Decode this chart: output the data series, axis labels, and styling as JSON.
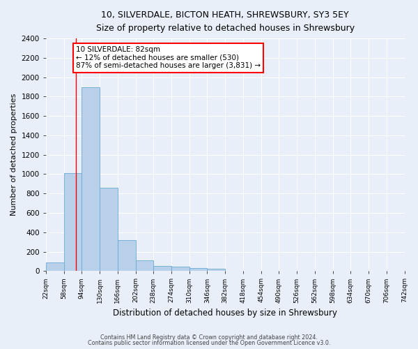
{
  "title1": "10, SILVERDALE, BICTON HEATH, SHREWSBURY, SY3 5EY",
  "title2": "Size of property relative to detached houses in Shrewsbury",
  "xlabel": "Distribution of detached houses by size in Shrewsbury",
  "ylabel": "Number of detached properties",
  "bar_values": [
    88,
    1010,
    1900,
    860,
    320,
    110,
    50,
    45,
    30,
    20,
    0,
    0,
    0,
    0,
    0,
    0,
    0,
    0,
    0,
    0
  ],
  "bin_edges": [
    22,
    58,
    94,
    130,
    166,
    202,
    238,
    274,
    310,
    346,
    382,
    418,
    454,
    490,
    526,
    562,
    598,
    634,
    670,
    706,
    742
  ],
  "tick_labels": [
    "22sqm",
    "58sqm",
    "94sqm",
    "130sqm",
    "166sqm",
    "202sqm",
    "238sqm",
    "274sqm",
    "310sqm",
    "346sqm",
    "382sqm",
    "418sqm",
    "454sqm",
    "490sqm",
    "526sqm",
    "562sqm",
    "598sqm",
    "634sqm",
    "670sqm",
    "706sqm",
    "742sqm"
  ],
  "bar_color": "#b8d0ea",
  "bar_edge_color": "#6aaad4",
  "background_color": "#e8eff9",
  "fig_background_color": "#e8eff9",
  "grid_color": "#ffffff",
  "annotation_line1": "10 SILVERDALE: 82sqm",
  "annotation_line2": "← 12% of detached houses are smaller (530)",
  "annotation_line3": "87% of semi-detached houses are larger (3,831) →",
  "red_line_x": 82,
  "ylim": [
    0,
    2400
  ],
  "yticks": [
    0,
    200,
    400,
    600,
    800,
    1000,
    1200,
    1400,
    1600,
    1800,
    2000,
    2200,
    2400
  ],
  "footer1": "Contains HM Land Registry data © Crown copyright and database right 2024.",
  "footer2": "Contains public sector information licensed under the Open Government Licence v3.0."
}
